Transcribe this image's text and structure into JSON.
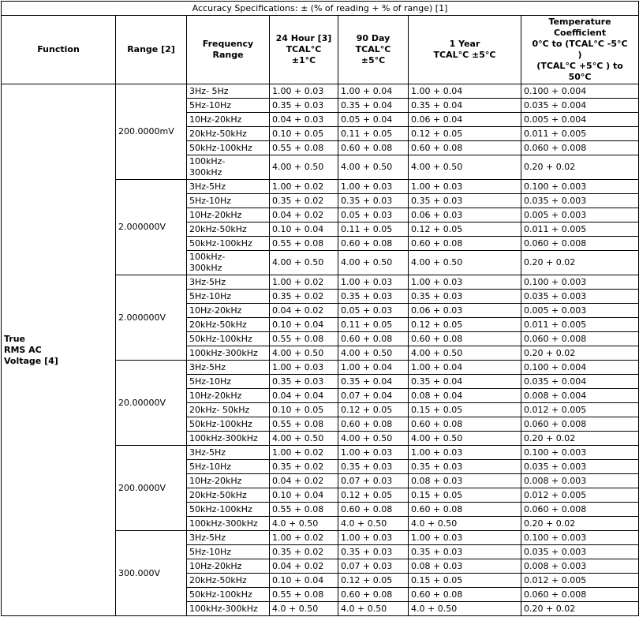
{
  "title": "Accuracy Specifications: ± (% of reading + % of range) [1]",
  "columns": {
    "function": "Function",
    "range": "Range [2]",
    "frequency": "Frequency\nRange",
    "hour24": "24 Hour [3]\nTCAL°C\n±1°C",
    "day90": "90 Day\nTCAL°C\n±5°C",
    "year1": "1 Year\nTCAL°C ±5°C",
    "tempco": "Temperature\nCoefficient\n0°C to (TCAL°C -5°C\n)\n(TCAL°C +5°C ) to\n50°C"
  },
  "function_label": "True\nRMS AC\nVoltage [4]",
  "groups": [
    {
      "range": "200.0000mV",
      "rows": [
        [
          "3Hz- 5Hz",
          "1.00 + 0.03",
          "1.00 + 0.04",
          "1.00 + 0.04",
          "0.100 + 0.004"
        ],
        [
          "5Hz-10Hz",
          "0.35 + 0.03",
          "0.35 + 0.04",
          "0.35 + 0.04",
          "0.035 + 0.004"
        ],
        [
          "10Hz-20kHz",
          "0.04 + 0.03",
          "0.05 + 0.04",
          "0.06 + 0.04",
          "0.005 + 0.004"
        ],
        [
          "20kHz-50kHz",
          "0.10 + 0.05",
          "0.11 + 0.05",
          "0.12 + 0.05",
          "0.011 + 0.005"
        ],
        [
          "50kHz-100kHz",
          "0.55 + 0.08",
          "0.60 + 0.08",
          "0.60 + 0.08",
          "0.060 + 0.008"
        ],
        [
          "100kHz-\n300kHz",
          "4.00 + 0.50",
          "4.00 + 0.50",
          "4.00 + 0.50",
          "0.20 + 0.02"
        ]
      ]
    },
    {
      "range": "2.000000V",
      "rows": [
        [
          "3Hz-5Hz",
          "1.00 + 0.02",
          "1.00 + 0.03",
          "1.00 + 0.03",
          "0.100 + 0.003"
        ],
        [
          "5Hz-10Hz",
          "0.35 + 0.02",
          "0.35 + 0.03",
          "0.35 + 0.03",
          "0.035 + 0.003"
        ],
        [
          "10Hz-20kHz",
          "0.04 + 0.02",
          "0.05 + 0.03",
          "0.06 + 0.03",
          "0.005 + 0.003"
        ],
        [
          "20kHz-50kHz",
          "0.10 + 0.04",
          "0.11 + 0.05",
          "0.12 + 0.05",
          "0.011 + 0.005"
        ],
        [
          "50kHz-100kHz",
          "0.55 + 0.08",
          "0.60 + 0.08",
          "0.60 + 0.08",
          "0.060 + 0.008"
        ],
        [
          "100kHz-\n300kHz",
          "4.00 + 0.50",
          "4.00 + 0.50",
          "4.00 + 0.50",
          "0.20 + 0.02"
        ]
      ]
    },
    {
      "range": "2.000000V",
      "rows": [
        [
          "3Hz-5Hz",
          "1.00 + 0.02",
          "1.00 + 0.03",
          "1.00 + 0.03",
          "0.100 + 0.003"
        ],
        [
          "5Hz-10Hz",
          "0.35 + 0.02",
          "0.35 + 0.03",
          "0.35 + 0.03",
          "0.035 + 0.003"
        ],
        [
          "10Hz-20kHz",
          "0.04 + 0.02",
          "0.05 + 0.03",
          "0.06 + 0.03",
          "0.005 + 0.003"
        ],
        [
          "20kHz-50kHz",
          "0.10 + 0.04",
          "0.11 + 0.05",
          "0.12 + 0.05",
          "0.011 + 0.005"
        ],
        [
          "50kHz-100kHz",
          "0.55 + 0.08",
          "0.60 + 0.08",
          "0.60 + 0.08",
          "0.060 + 0.008"
        ],
        [
          "100kHz-300kHz",
          "4.00 + 0.50",
          "4.00 + 0.50",
          "4.00 + 0.50",
          "0.20 + 0.02"
        ]
      ]
    },
    {
      "range": "20.00000V",
      "rows": [
        [
          "3Hz-5Hz",
          "1.00 + 0.03",
          "1.00 + 0.04",
          "1.00 + 0.04",
          "0.100 + 0.004"
        ],
        [
          "5Hz-10Hz",
          "0.35 + 0.03",
          "0.35 + 0.04",
          "0.35 + 0.04",
          "0.035 + 0.004"
        ],
        [
          "10Hz-20kHz",
          "0.04 + 0.04",
          "0.07 + 0.04",
          "0.08 + 0.04",
          "0.008 + 0.004"
        ],
        [
          "20kHz- 50kHz",
          "0.10 + 0.05",
          "0.12 + 0.05",
          "0.15 + 0.05",
          "0.012 + 0.005"
        ],
        [
          "50kHz-100kHz",
          "0.55 + 0.08",
          "0.60 + 0.08",
          "0.60 + 0.08",
          "0.060 + 0.008"
        ],
        [
          "100kHz-300kHz",
          "4.00 + 0.50",
          "4.00 + 0.50",
          "4.00 + 0.50",
          "0.20 + 0.02"
        ]
      ]
    },
    {
      "range": "200.0000V",
      "rows": [
        [
          "3Hz-5Hz",
          "1.00 + 0.02",
          "1.00 + 0.03",
          "1.00 + 0.03",
          "0.100 + 0.003"
        ],
        [
          "5Hz-10Hz",
          "0.35 + 0.02",
          "0.35 + 0.03",
          "0.35 + 0.03",
          "0.035 + 0.003"
        ],
        [
          "10Hz-20kHz",
          "0.04 + 0.02",
          "0.07 + 0.03",
          "0.08 + 0.03",
          "0.008 + 0.003"
        ],
        [
          "20kHz-50kHz",
          "0.10 + 0.04",
          "0.12 + 0.05",
          "0.15 + 0.05",
          "0.012 + 0.005"
        ],
        [
          "50kHz-100kHz",
          "0.55 + 0.08",
          "0.60 + 0.08",
          "0.60 + 0.08",
          "0.060 + 0.008"
        ],
        [
          "100kHz-300kHz",
          "4.0 + 0.50",
          "4.0 + 0.50",
          "4.0 + 0.50",
          "0.20 + 0.02"
        ]
      ]
    },
    {
      "range": "300.000V",
      "rows": [
        [
          "3Hz-5Hz",
          "1.00 + 0.02",
          "1.00 + 0.03",
          "1.00 + 0.03",
          "0.100 + 0.003"
        ],
        [
          "5Hz-10Hz",
          "0.35 + 0.02",
          "0.35 + 0.03",
          "0.35 + 0.03",
          "0.035 + 0.003"
        ],
        [
          "10Hz-20kHz",
          "0.04 + 0.02",
          "0.07 + 0.03",
          "0.08 + 0.03",
          "0.008 + 0.003"
        ],
        [
          "20kHz-50kHz",
          "0.10 + 0.04",
          "0.12 + 0.05",
          "0.15 + 0.05",
          "0.012 + 0.005"
        ],
        [
          "50kHz-100kHz",
          "0.55 + 0.08",
          "0.60 + 0.08",
          "0.60 + 0.08",
          "0.060 + 0.008"
        ],
        [
          "100kHz-300kHz",
          "4.0 + 0.50",
          "4.0 + 0.50",
          "4.0 + 0.50",
          "0.20 + 0.02"
        ]
      ]
    }
  ]
}
